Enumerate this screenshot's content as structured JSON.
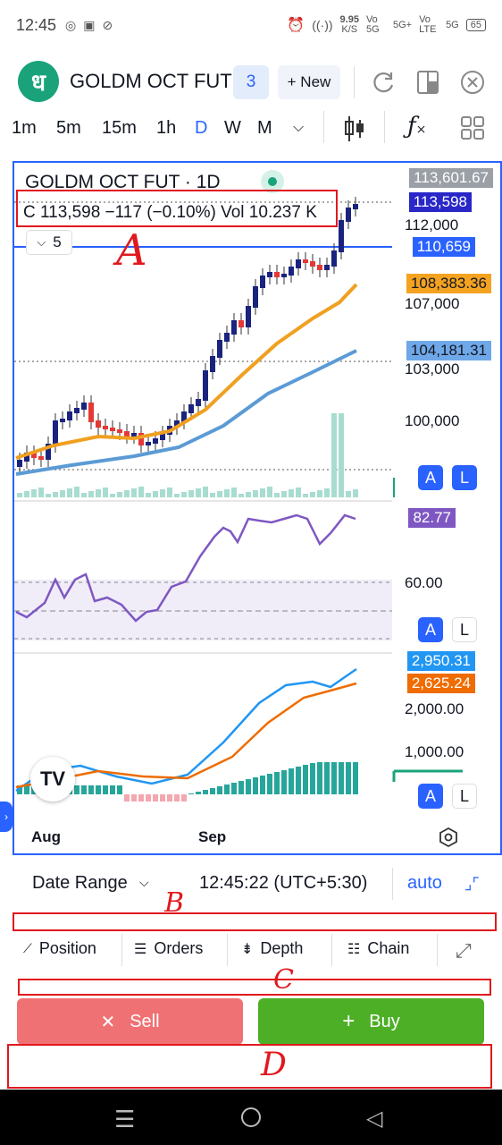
{
  "status_bar": {
    "time": "12:45",
    "net_speed": "9.95",
    "net_unit": "K/S",
    "sim1": "Vo 5G",
    "sim1_net": "5G+",
    "sim2": "Vo LTE",
    "sim2_net": "5G",
    "battery": "65"
  },
  "header": {
    "logo_glyph": "ध",
    "symbol": "GOLDM OCT FUT",
    "badge_count": "3",
    "new_button": "+ New"
  },
  "timeframes": [
    "1m",
    "5m",
    "15m",
    "1h",
    "D",
    "W",
    "M"
  ],
  "active_timeframe": "D",
  "chart": {
    "title": "GOLDM OCT FUT · 1D",
    "ohlc_text": "C 113,598  −117 (−0.10%)  Vol 10.237 K",
    "indicator_count": "5",
    "price_labels": {
      "high": "113,601.67",
      "last": "113,598",
      "line": "110,659",
      "ema_fast": "108,383.36",
      "ema_slow": "104,181.31",
      "rsi": "82.77",
      "macd": "2,950.31",
      "signal": "2,625.24"
    },
    "axis_ticks": [
      "112,000",
      "107,000",
      "103,000",
      "100,000"
    ],
    "rsi_tick": "60.00",
    "macd_ticks": [
      "2,000.00",
      "1,000.00"
    ],
    "x_ticks": [
      "Aug",
      "Sep"
    ],
    "alert_button": "A",
    "log_button": "L",
    "colors": {
      "up_candle": "#1a237e",
      "down_candle": "#e53935",
      "ema_fast": "#f0a020",
      "ema_slow": "#5b9bd5",
      "rsi": "#7e57c2",
      "macd": "#2196f3",
      "signal": "#ef6c00",
      "hist_up": "#26a69a",
      "accent": "#2962ff"
    }
  },
  "chart_data": {
    "type": "line",
    "x": [
      "Aug",
      "Sep"
    ],
    "series": [],
    "price_scale_ticks": [
      112000,
      107000,
      103000,
      100000
    ],
    "last_close": 113598,
    "change": -117,
    "change_pct": -0.1,
    "volume": "10.237 K",
    "rsi_last": 82.77,
    "macd_last": 2950.31,
    "signal_last": 2625.24
  },
  "date_range": {
    "label": "Date Range",
    "clock": "12:45:22 (UTC+5:30)",
    "auto": "auto"
  },
  "toolbar": {
    "position": "Position",
    "orders": "Orders",
    "depth": "Depth",
    "chain": "Chain"
  },
  "trade": {
    "sell": "Sell",
    "buy": "Buy",
    "sell_color": "#f07174",
    "buy_color": "#4caf26"
  },
  "annotations": {
    "a": "A",
    "b": "B",
    "c": "C",
    "d": "D"
  }
}
